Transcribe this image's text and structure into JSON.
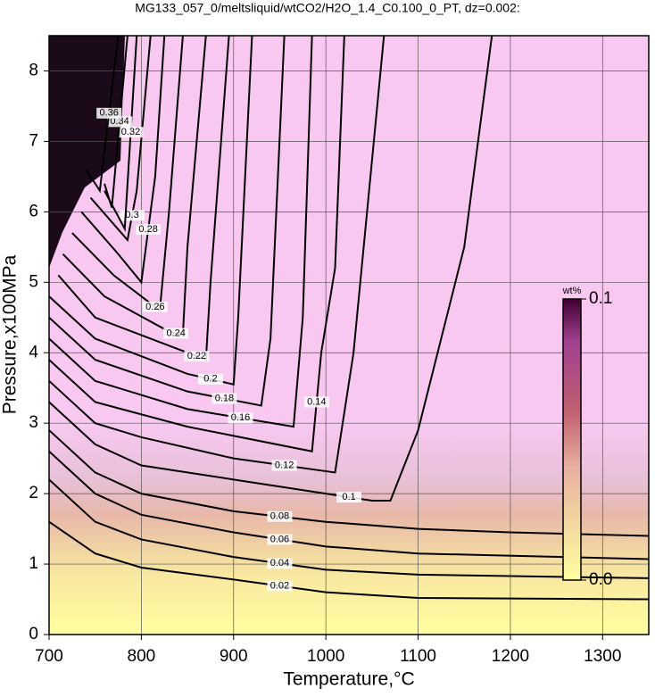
{
  "chart_data": {
    "type": "contour",
    "title": "MG133_057_0/meltsliquid/wtCO2/H2O_1.4_C0.100_0_PT, dz=0.002:",
    "x_label": "Temperature,°C",
    "y_label": "Pressure,x100MPa",
    "xlim": [
      700,
      1350
    ],
    "ylim": [
      0,
      8.5
    ],
    "xticks": [
      700,
      800,
      900,
      1000,
      1100,
      1200,
      1300
    ],
    "yticks": [
      0,
      1,
      2,
      3,
      4,
      5,
      6,
      7,
      8
    ],
    "grid": true,
    "colorbar": {
      "label": "wt%",
      "clim": [
        0,
        0.1
      ],
      "ticks": [
        0.1,
        {
          "value": 0,
          "label": "0.0"
        }
      ],
      "colors": [
        "#ffffa0",
        "#e8b0a0",
        "#c06070",
        "#802070",
        "#400030"
      ]
    },
    "contours": [
      {
        "level": 0.02,
        "x": [
          700,
          750,
          800,
          900,
          1000,
          1100,
          1350
        ],
        "y": [
          1.6,
          1.15,
          0.95,
          0.78,
          0.6,
          0.52,
          0.5
        ]
      },
      {
        "level": 0.04,
        "x": [
          700,
          750,
          800,
          900,
          1000,
          1100,
          1350
        ],
        "y": [
          2.2,
          1.6,
          1.35,
          1.1,
          0.92,
          0.85,
          0.8
        ]
      },
      {
        "level": 0.06,
        "x": [
          700,
          750,
          800,
          900,
          1000,
          1100,
          1350
        ],
        "y": [
          2.6,
          2.0,
          1.7,
          1.45,
          1.25,
          1.15,
          1.07
        ]
      },
      {
        "level": 0.08,
        "x": [
          700,
          750,
          800,
          900,
          1000,
          1100,
          1200,
          1350
        ],
        "y": [
          2.9,
          2.3,
          2.0,
          1.75,
          1.6,
          1.5,
          1.45,
          1.4
        ]
      },
      {
        "level": 0.1,
        "x": [
          700,
          750,
          800,
          900,
          1000,
          1050,
          1070,
          1100,
          1150,
          1180
        ],
        "y": [
          3.3,
          2.7,
          2.4,
          2.2,
          2.0,
          1.9,
          1.9,
          2.9,
          5.5,
          8.5
        ]
      },
      {
        "level": 0.12,
        "x": [
          700,
          750,
          800,
          900,
          1010,
          1030,
          1063
        ],
        "y": [
          3.6,
          3.0,
          2.8,
          2.5,
          2.3,
          4.0,
          8.5
        ]
      },
      {
        "level": 0.14,
        "x": [
          700,
          750,
          850,
          985,
          995,
          1010,
          1020
        ],
        "y": [
          3.9,
          3.3,
          2.95,
          2.6,
          4.0,
          5.2,
          8.5
        ]
      },
      {
        "level": 0.16,
        "x": [
          700,
          750,
          850,
          965,
          975,
          985
        ],
        "y": [
          4.2,
          3.6,
          3.2,
          2.95,
          4.5,
          8.5
        ]
      },
      {
        "level": 0.18,
        "x": [
          700,
          750,
          850,
          930,
          940,
          955
        ],
        "y": [
          4.5,
          3.9,
          3.45,
          3.25,
          4.2,
          8.5
        ]
      },
      {
        "level": 0.2,
        "x": [
          700,
          750,
          850,
          900,
          905,
          920
        ],
        "y": [
          4.8,
          4.2,
          3.7,
          3.55,
          4.5,
          8.5
        ]
      },
      {
        "level": 0.22,
        "x": [
          710,
          750,
          850,
          870,
          875,
          895
        ],
        "y": [
          5.1,
          4.5,
          4.0,
          3.9,
          5.0,
          8.5
        ]
      },
      {
        "level": 0.24,
        "x": [
          715,
          760,
          830,
          845,
          850,
          870
        ],
        "y": [
          5.4,
          4.8,
          4.3,
          4.25,
          5.5,
          8.5
        ]
      },
      {
        "level": 0.26,
        "x": [
          725,
          770,
          810,
          820,
          830,
          845
        ],
        "y": [
          5.7,
          5.1,
          4.7,
          4.6,
          6.0,
          8.5
        ]
      },
      {
        "level": 0.28,
        "x": [
          735,
          775,
          800,
          815,
          825
        ],
        "y": [
          6.0,
          5.4,
          5.0,
          6.5,
          8.5
        ]
      },
      {
        "level": 0.3,
        "x": [
          745,
          785,
          795,
          810
        ],
        "y": [
          6.2,
          5.6,
          6.3,
          8.5
        ]
      },
      {
        "level": 0.32,
        "x": [
          760,
          782,
          795
        ],
        "y": [
          6.3,
          5.76,
          8.5
        ]
      },
      {
        "level": 0.34,
        "x": [
          760,
          768,
          785
        ],
        "y": [
          6.4,
          6.06,
          8.5
        ]
      },
      {
        "level": 0.36,
        "x": [
          740,
          755,
          775
        ],
        "y": [
          6.6,
          6.3,
          8.5
        ]
      }
    ]
  }
}
